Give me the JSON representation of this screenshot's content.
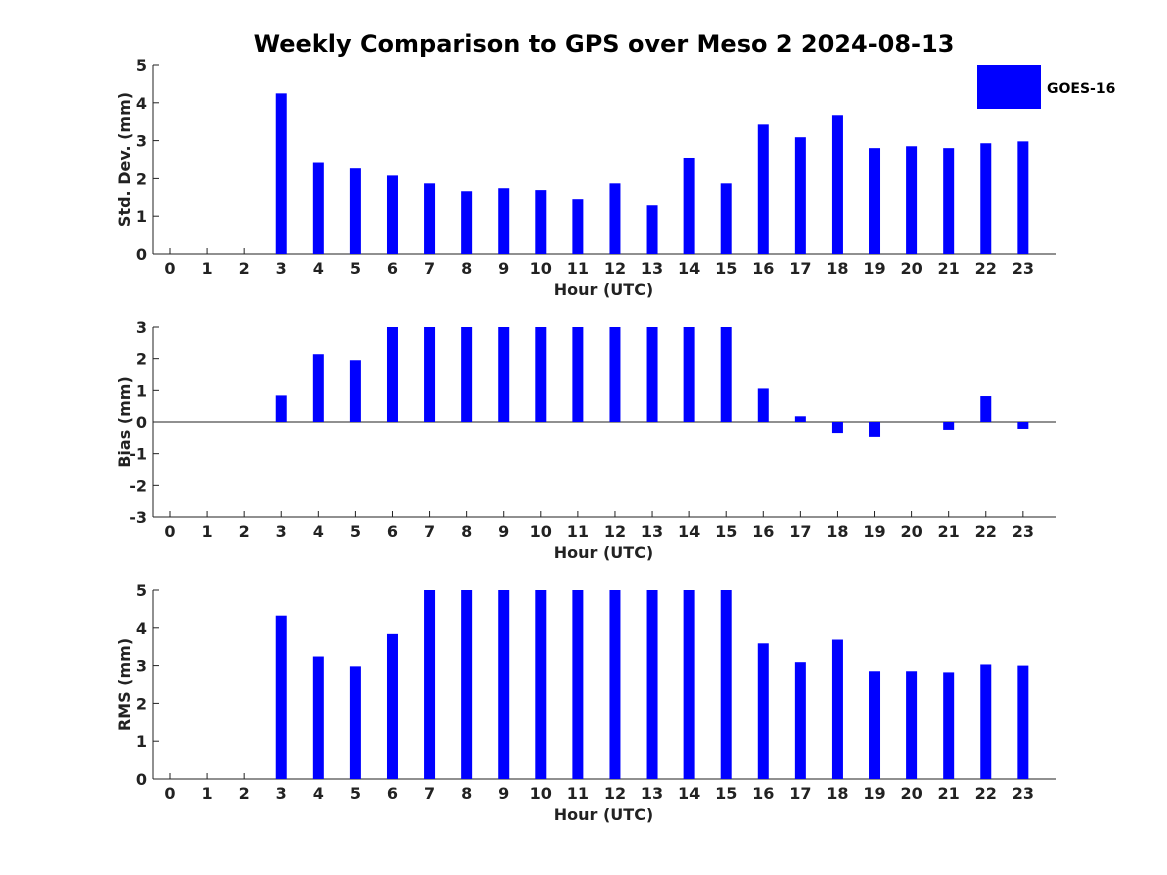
{
  "colors": {
    "bar": "#0000ff",
    "axis": "#222222",
    "background": "#ffffff"
  },
  "chart_data": {
    "title": "Weekly Comparison to GPS over Meso 2 2024-08-13",
    "legend": {
      "entries": [
        "GOES-16"
      ],
      "placement": "top-right"
    },
    "categories": [
      "0",
      "1",
      "2",
      "3",
      "4",
      "5",
      "6",
      "7",
      "8",
      "9",
      "10",
      "11",
      "12",
      "13",
      "14",
      "15",
      "16",
      "17",
      "18",
      "19",
      "20",
      "21",
      "22",
      "23"
    ],
    "panels": [
      {
        "type": "bar",
        "name": "std-dev",
        "series_name": "GOES-16",
        "xlabel": "Hour (UTC)",
        "ylabel": "Std. Dev. (mm)",
        "ylim": [
          0,
          5
        ],
        "yticks": [
          "0",
          "1",
          "2",
          "3",
          "4",
          "5"
        ],
        "values": [
          null,
          null,
          null,
          4.25,
          2.42,
          2.27,
          2.08,
          1.87,
          1.66,
          1.74,
          1.69,
          1.45,
          1.87,
          1.29,
          2.54,
          1.87,
          3.43,
          3.09,
          3.67,
          2.8,
          2.85,
          2.8,
          2.93,
          2.98
        ]
      },
      {
        "type": "bar",
        "name": "bias",
        "series_name": "GOES-16",
        "xlabel": "Hour (UTC)",
        "ylabel": "Bias (mm)",
        "ylim": [
          -3,
          3
        ],
        "yticks": [
          "-3",
          "-2",
          "-1",
          "0",
          "1",
          "2",
          "3"
        ],
        "values": [
          null,
          null,
          null,
          0.84,
          2.14,
          1.95,
          3.0,
          3.0,
          3.0,
          3.0,
          3.0,
          3.0,
          3.0,
          3.0,
          3.0,
          3.0,
          1.06,
          0.18,
          -0.35,
          -0.47,
          null,
          -0.25,
          0.82,
          -0.22
        ]
      },
      {
        "type": "bar",
        "name": "rms",
        "series_name": "GOES-16",
        "xlabel": "Hour (UTC)",
        "ylabel": "RMS (mm)",
        "ylim": [
          0,
          5
        ],
        "yticks": [
          "0",
          "1",
          "2",
          "3",
          "4",
          "5"
        ],
        "values": [
          null,
          null,
          null,
          4.32,
          3.24,
          2.98,
          3.84,
          5.0,
          5.0,
          5.0,
          5.0,
          5.0,
          5.0,
          5.0,
          5.0,
          5.0,
          3.59,
          3.09,
          3.69,
          2.85,
          2.85,
          2.82,
          3.03,
          3.0
        ]
      }
    ]
  }
}
